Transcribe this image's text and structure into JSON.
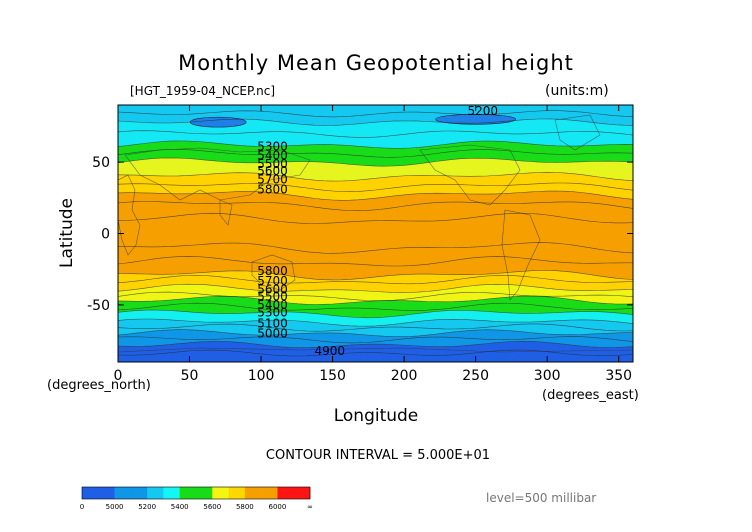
{
  "chart_data": {
    "type": "contour",
    "title": "Monthly Mean Geopotential height",
    "file_label": "[HGT_1959-04_NCEP.nc]",
    "units_label": "(units:m)",
    "xlabel": "Longitude",
    "ylabel": "Latitude",
    "x_unit_label": "(degrees_east)",
    "y_unit_label": "(degrees_north)",
    "xlim": [
      0,
      360
    ],
    "ylim": [
      -90,
      90
    ],
    "x_ticks": [
      0,
      50,
      100,
      150,
      200,
      250,
      300,
      350
    ],
    "y_ticks": [
      50,
      0,
      -50
    ],
    "contour_interval_text": "CONTOUR INTERVAL = 5.000E+01",
    "level_text": "level=500 millibar",
    "contour_labels": [
      {
        "text": "5200",
        "x": 255,
        "y": 83
      },
      {
        "text": "5300",
        "x": 108,
        "y": 58
      },
      {
        "text": "5400",
        "x": 108,
        "y": 52
      },
      {
        "text": "5500",
        "x": 108,
        "y": 46
      },
      {
        "text": "5600",
        "x": 108,
        "y": 41
      },
      {
        "text": "5700",
        "x": 108,
        "y": 35
      },
      {
        "text": "5800",
        "x": 108,
        "y": 28
      },
      {
        "text": "5800",
        "x": 108,
        "y": -29
      },
      {
        "text": "5700",
        "x": 108,
        "y": -36
      },
      {
        "text": "5600",
        "x": 108,
        "y": -42
      },
      {
        "text": "5500",
        "x": 108,
        "y": -47
      },
      {
        "text": "5400",
        "x": 108,
        "y": -53
      },
      {
        "text": "5300",
        "x": 108,
        "y": -58
      },
      {
        "text": "5100",
        "x": 108,
        "y": -66
      },
      {
        "text": "5000",
        "x": 108,
        "y": -73
      },
      {
        "text": "4900",
        "x": 148,
        "y": -85
      }
    ],
    "colorbar": {
      "labels": [
        "0",
        "5000",
        "5200",
        "5400",
        "5600",
        "5800",
        "6000",
        "∞"
      ],
      "colors": [
        "#1e5fe6",
        "#1e5fe6",
        "#0f96e6",
        "#0f96e6",
        "#14c8f0",
        "#14f5f5",
        "#19dc19",
        "#19dc19",
        "#f5f514",
        "#ffd700",
        "#f5a000",
        "#f5a000",
        "#ff1414",
        "#ff1414"
      ]
    },
    "fill_bands": [
      {
        "from": 90,
        "to": 78,
        "color": "#14c8f0"
      },
      {
        "from": 78,
        "to": 62,
        "color": "#14e8f5"
      },
      {
        "from": 62,
        "to": 50,
        "color": "#19dc19"
      },
      {
        "from": 50,
        "to": 40,
        "color": "#e6f51e"
      },
      {
        "from": 40,
        "to": 27,
        "color": "#ffd200"
      },
      {
        "from": 27,
        "to": -29,
        "color": "#f5a000"
      },
      {
        "from": -29,
        "to": -39,
        "color": "#ffd200"
      },
      {
        "from": -39,
        "to": -47,
        "color": "#f0f514"
      },
      {
        "from": -47,
        "to": -56,
        "color": "#19dc19"
      },
      {
        "from": -56,
        "to": -62,
        "color": "#14f0f0"
      },
      {
        "from": -62,
        "to": -70,
        "color": "#14c8f0"
      },
      {
        "from": -70,
        "to": -78,
        "color": "#0f96e6"
      },
      {
        "from": -78,
        "to": -90,
        "color": "#1e5fe6"
      }
    ]
  }
}
